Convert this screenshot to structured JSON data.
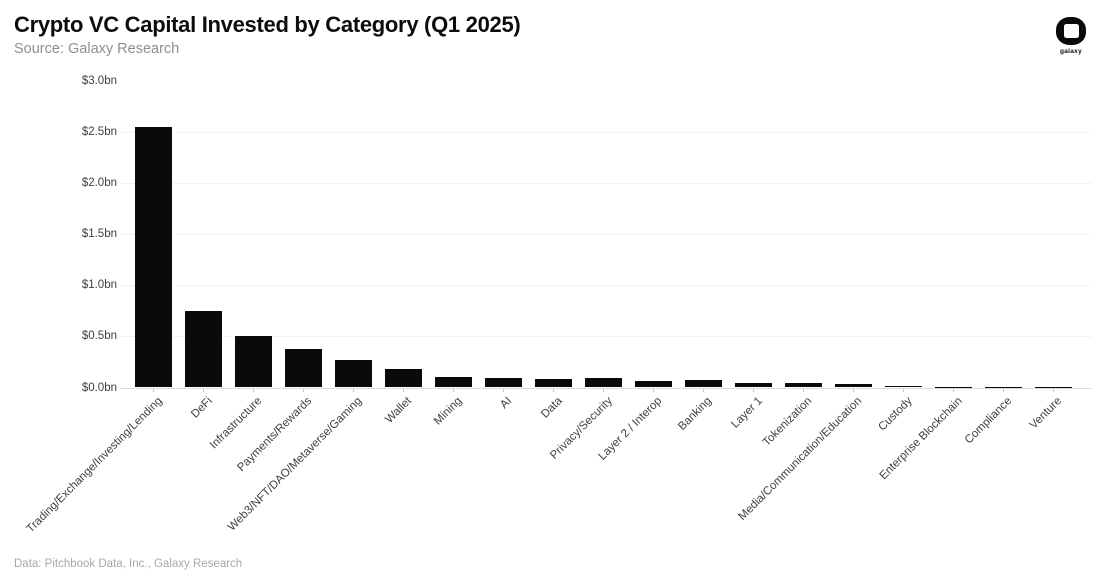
{
  "header": {
    "title": "Crypto VC Capital Invested by Category (Q1 2025)",
    "subtitle": "Source: Galaxy Research"
  },
  "brand": {
    "label": "galaxy"
  },
  "footer": {
    "note": "Data: Pitchbook Data, Inc., Galaxy Research"
  },
  "chart_data": {
    "type": "bar",
    "title": "Crypto VC Capital Invested by Category (Q1 2025)",
    "unit": "$bn",
    "categories": [
      "Trading/Exchange/Investing/Lending",
      "DeFi",
      "Infrastructure",
      "Payments/Rewards",
      "Web3/NFT/DAO/Metaverse/Gaming",
      "Wallet",
      "Mining",
      "AI",
      "Data",
      "Privacy/Security",
      "Layer 2 / Interop",
      "Banking",
      "Layer 1",
      "Tokenization",
      "Media/Communication/Education",
      "Custody",
      "Enterprise Blockchain",
      "Compliance",
      "Venture"
    ],
    "values": [
      2.55,
      0.75,
      0.5,
      0.38,
      0.27,
      0.18,
      0.1,
      0.09,
      0.085,
      0.09,
      0.065,
      0.07,
      0.045,
      0.042,
      0.035,
      0.015,
      0.008,
      0.007,
      0.006
    ],
    "xlabel": "",
    "ylabel": "",
    "ylim": [
      0,
      3.0
    ],
    "y_tick_labels": [
      "$0.0bn",
      "$0.5bn",
      "$1.0bn",
      "$1.5bn",
      "$2.0bn",
      "$2.5bn",
      "$3.0bn"
    ],
    "y_tick_values": [
      0,
      0.5,
      1.0,
      1.5,
      2.0,
      2.5,
      3.0
    ],
    "grid": "horizontal",
    "legend": "none",
    "bar_color": "#0a0a0a",
    "background_color": "#ffffff"
  }
}
